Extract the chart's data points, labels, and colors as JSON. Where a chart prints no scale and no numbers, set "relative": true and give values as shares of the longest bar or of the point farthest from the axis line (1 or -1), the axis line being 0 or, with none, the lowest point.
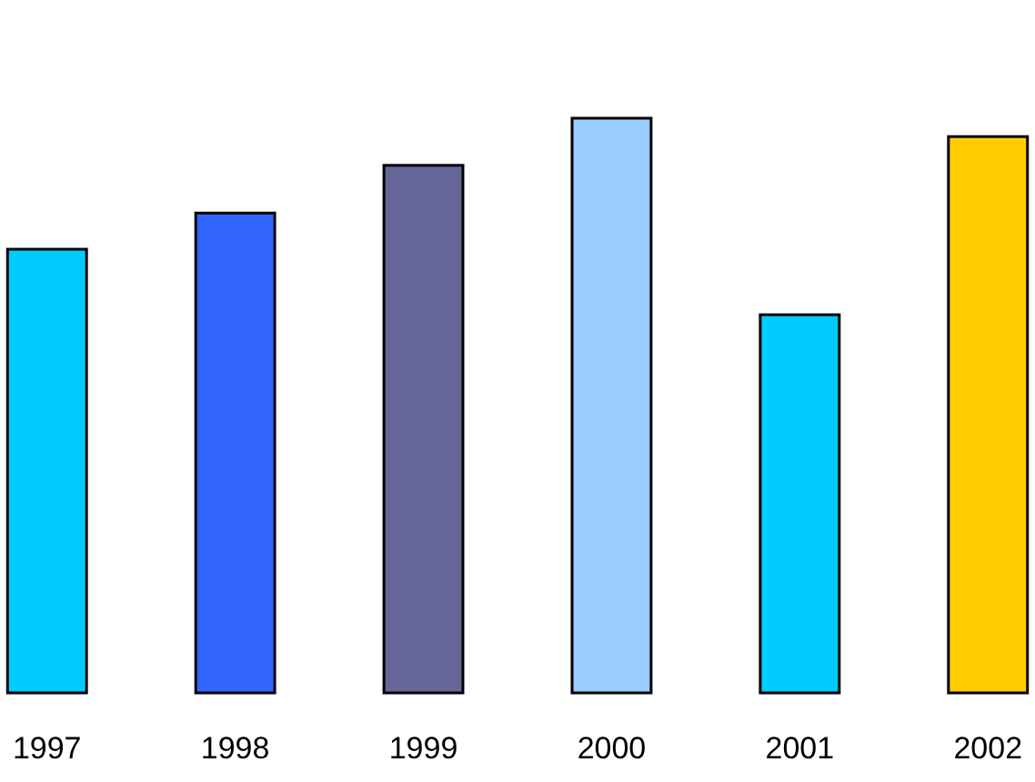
{
  "chart_data": {
    "type": "bar",
    "relative": true,
    "categories": [
      "1997",
      "1998",
      "1999",
      "2000",
      "2001",
      "2002"
    ],
    "values": [
      0.772,
      0.835,
      0.918,
      1,
      0.658,
      0.968
    ],
    "colors": [
      "#00ccff",
      "#3366ff",
      "#666699",
      "#99ccff",
      "#00ccff",
      "#ffcc00"
    ]
  }
}
